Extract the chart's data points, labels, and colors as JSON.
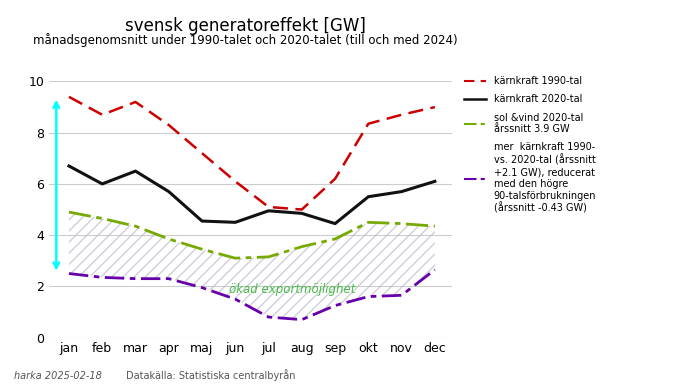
{
  "title": "svensk generatoreffekt [GW]",
  "subtitle": "månadsgenomsnitt under 1990-talet och 2020-talet (till och med 2024)",
  "months": [
    "jan",
    "feb",
    "mar",
    "apr",
    "maj",
    "jun",
    "jul",
    "aug",
    "sep",
    "okt",
    "nov",
    "dec"
  ],
  "karnkraft_1990": [
    9.4,
    8.7,
    9.2,
    8.3,
    7.2,
    6.1,
    5.1,
    5.0,
    6.2,
    8.35,
    8.7,
    9.0
  ],
  "karnkraft_2020": [
    6.7,
    6.0,
    6.5,
    5.7,
    4.55,
    4.5,
    4.95,
    4.85,
    4.45,
    5.5,
    5.7,
    6.1
  ],
  "sol_vind_2020": [
    4.9,
    4.65,
    4.35,
    3.85,
    3.45,
    3.1,
    3.15,
    3.55,
    3.85,
    4.5,
    4.45,
    4.35
  ],
  "diff_net": [
    2.5,
    2.35,
    2.3,
    2.3,
    1.95,
    1.5,
    0.8,
    0.7,
    1.25,
    1.6,
    1.65,
    2.65
  ],
  "ylim": [
    0,
    10
  ],
  "karnkraft_1990_color": "#cc0000",
  "karnkraft_2020_color": "#111111",
  "sol_vind_color": "#77aa00",
  "diff_color": "#6600aa",
  "annotation_color": "#44bb44",
  "annotation_text": "ökad exportmöjlighet",
  "footnote_left": "harka 2025-02-18",
  "footnote_right": "Datakälla: Statistiska centralbyrån",
  "legend_karnkraft_1990": "kärnkraft 1990-tal",
  "legend_karnkraft_2020": "kärnkraft 2020-tal",
  "legend_sol_vind": "sol &vind 2020-tal\nårssnitt 3.9 GW",
  "legend_diff": "mer  kärnkraft 1990-\nvs. 2020-tal (årssnitt\n+2.1 GW), reducerat\nmed den högre\n90-talsförbrukningen\n(årssnitt -0.43 GW)"
}
